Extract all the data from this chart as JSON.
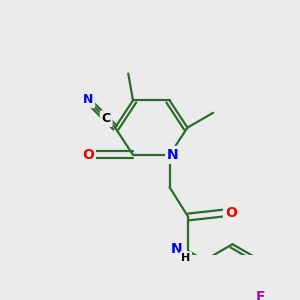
{
  "bg_color": "#ebebeb",
  "bond_color": "#2d6b2d",
  "atom_colors": {
    "N": "#0000ee",
    "O": "#ee0000",
    "F": "#bb00bb",
    "C": "#000000"
  },
  "figsize": [
    3.0,
    3.0
  ],
  "dpi": 100,
  "bond_lw": 1.6,
  "font_size": 9
}
